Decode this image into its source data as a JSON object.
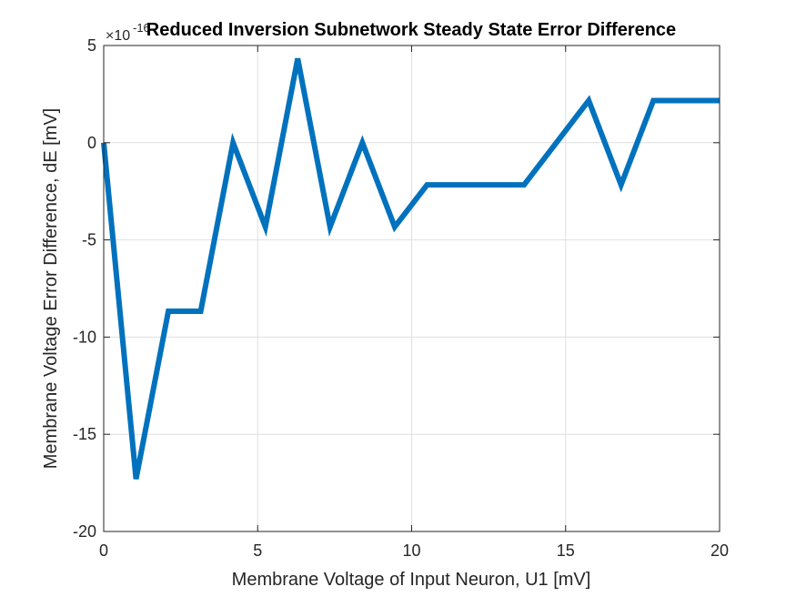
{
  "chart_data": {
    "type": "line",
    "title": "Reduced Inversion Subnetwork Steady State Error Difference",
    "xlabel": "Membrane Voltage of Input Neuron, U1 [mV]",
    "ylabel": "Membrane Voltage Error Difference, dE [mV]",
    "y_exponent_label": "×10",
    "y_exponent_power": "-16",
    "xlim": [
      0,
      20
    ],
    "ylim": [
      -20,
      5
    ],
    "x_ticks": [
      "0",
      "5",
      "10",
      "15",
      "20"
    ],
    "y_ticks": [
      "-20",
      "-15",
      "-10",
      "-5",
      "0",
      "5"
    ],
    "grid": true,
    "series": [
      {
        "color": "#0072BD",
        "x": [
          0,
          1.05,
          2.1,
          3.15,
          4.2,
          5.25,
          6.3,
          7.35,
          8.4,
          9.45,
          10.5,
          11.55,
          12.6,
          13.65,
          14.7,
          15.75,
          16.8,
          17.85,
          18.9,
          20
        ],
        "y": [
          0,
          -17.3,
          -8.67,
          -8.67,
          0,
          -4.33,
          4.33,
          -4.33,
          0,
          -4.33,
          -2.17,
          -2.17,
          -2.17,
          -2.17,
          0,
          2.17,
          -2.17,
          2.17,
          2.17,
          2.17
        ]
      }
    ]
  }
}
